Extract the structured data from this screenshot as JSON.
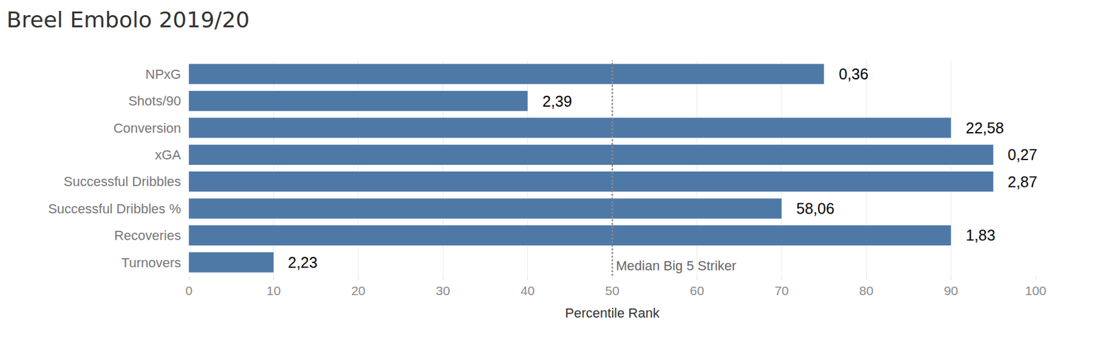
{
  "chart_data": {
    "type": "bar",
    "title": "Breel Embolo 2019/20",
    "orientation": "horizontal",
    "categories": [
      "NPxG",
      "Shots/90",
      "Conversion",
      "xGA",
      "Successful Dribbles",
      "Successful Dribbles %",
      "Recoveries",
      "Turnovers"
    ],
    "values": [
      75,
      40,
      90,
      95,
      95,
      70,
      90,
      10
    ],
    "color": "#4e79a7",
    "xlabel": "Percentile Rank",
    "xlim": [
      0,
      100
    ],
    "xticks": [
      0,
      10,
      20,
      30,
      40,
      50,
      60,
      70,
      80,
      90,
      100
    ],
    "grid": true,
    "annotations": [
      {
        "category": "NPxG",
        "text": "0,36"
      },
      {
        "category": "Shots/90",
        "text": "2,39"
      },
      {
        "category": "Conversion",
        "text": "22,58"
      },
      {
        "category": "xGA",
        "text": "0,27"
      },
      {
        "category": "Successful Dribbles",
        "text": "2,87"
      },
      {
        "category": "Successful Dribbles %",
        "text": "58,06"
      },
      {
        "category": "Recoveries",
        "text": "1,83"
      },
      {
        "category": "Turnovers",
        "text": "2,23"
      }
    ],
    "reference_line": {
      "value": 50,
      "label": "Median Big 5 Striker",
      "line_style": "dotted"
    }
  }
}
